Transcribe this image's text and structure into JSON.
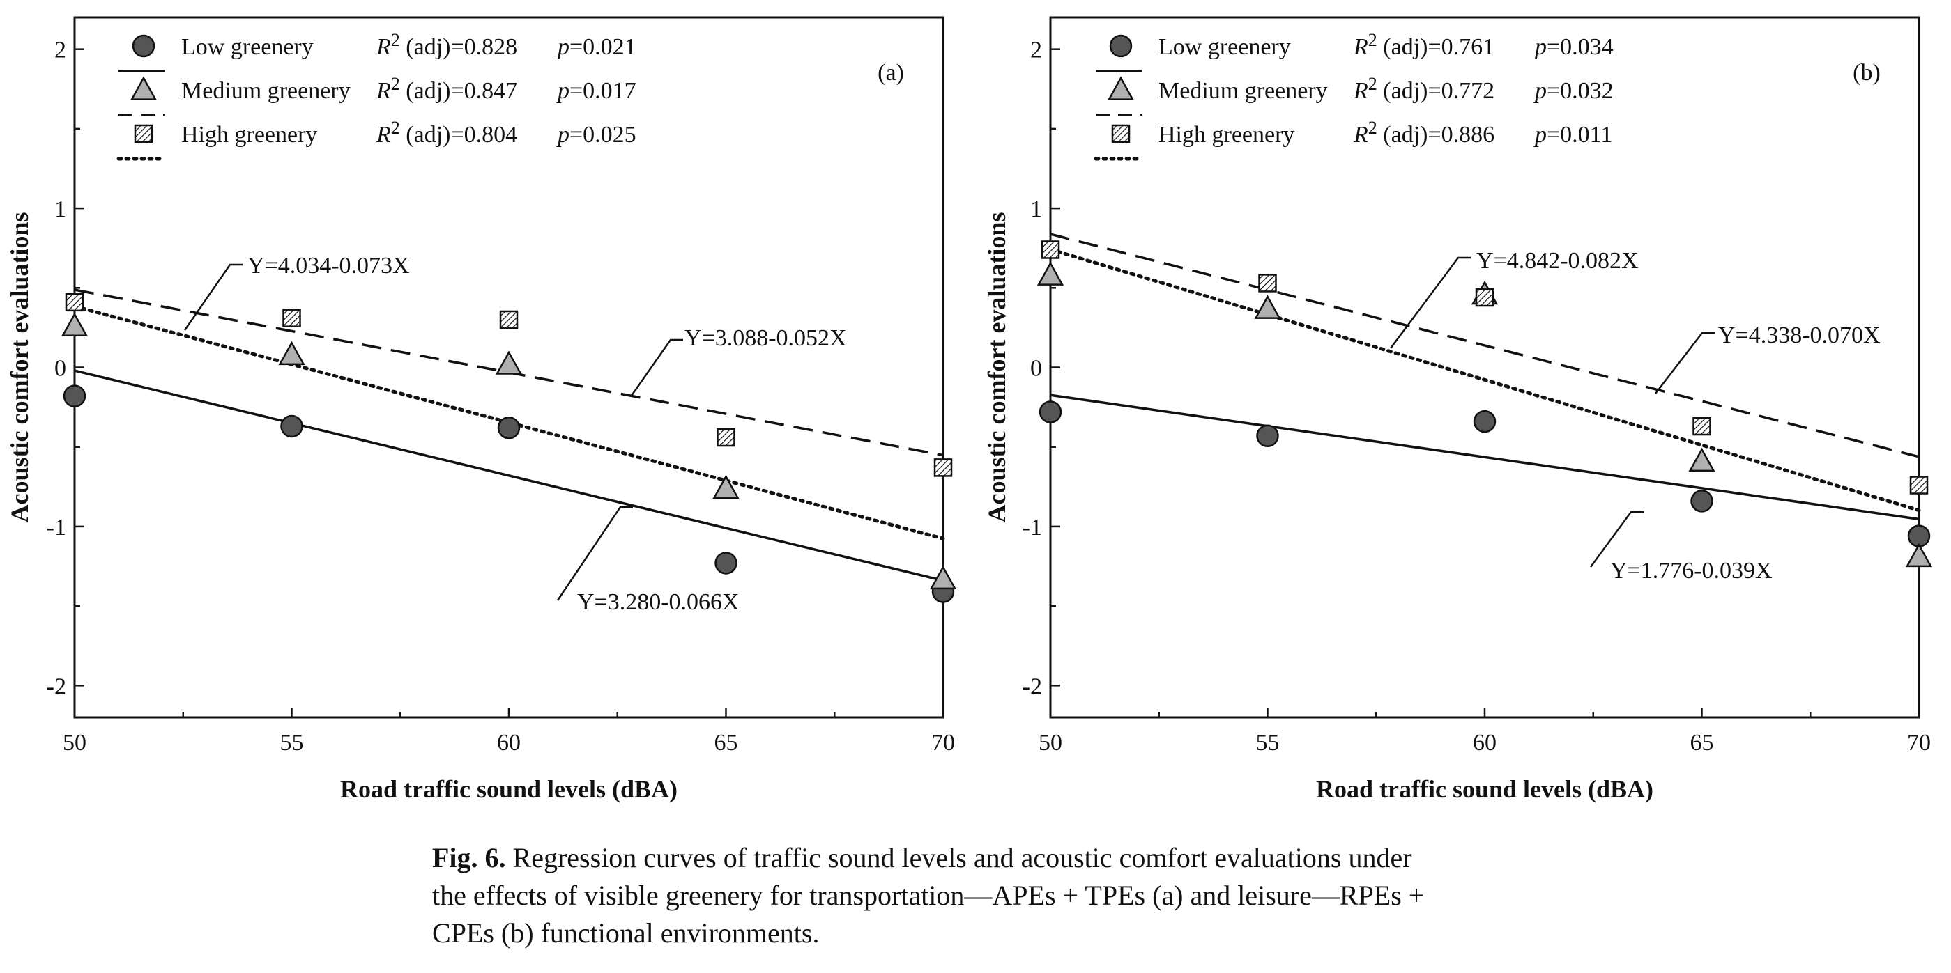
{
  "chart_data": [
    {
      "type": "scatter",
      "panel_label": "(a)",
      "xlabel": "Road traffic sound levels (dBA)",
      "ylabel": "Acoustic comfort evaluations",
      "xlim": [
        50,
        70
      ],
      "ylim": [
        -2.2,
        2.2
      ],
      "x_ticks": [
        "50",
        "55",
        "60",
        "65",
        "70"
      ],
      "y_ticks": [
        "-2",
        "-1",
        "0",
        "1",
        "2"
      ],
      "legend_position": "top-left",
      "x": [
        50,
        55,
        60,
        65,
        70
      ],
      "series": [
        {
          "name": "Low greenery",
          "marker": "circle",
          "line": "solid",
          "values": [
            -0.18,
            -0.37,
            -0.38,
            -1.23,
            -1.41
          ],
          "r2_label": "R",
          "r2_rest": " (adj)=0.828",
          "p_label": "p",
          "p_rest": "=0.021",
          "intercept": 3.28,
          "slope": -0.066,
          "equation": "Y=3.280-0.066X"
        },
        {
          "name": "Medium greenery",
          "marker": "triangle",
          "line": "dashed",
          "values": [
            0.26,
            0.08,
            0.02,
            -0.76,
            -1.33
          ],
          "r2_label": "R",
          "r2_rest": " (adj)=0.847",
          "p_label": "p",
          "p_rest": "=0.017",
          "intercept": 3.088,
          "slope": -0.052,
          "equation": "Y=3.088-0.052X"
        },
        {
          "name": "High greenery",
          "marker": "hatched-square",
          "line": "dotted",
          "values": [
            0.41,
            0.31,
            0.3,
            -0.44,
            -0.63
          ],
          "r2_label": "R",
          "r2_rest": " (adj)=0.804",
          "p_label": "p",
          "p_rest": "=0.025",
          "intercept": 4.034,
          "slope": -0.073,
          "equation": "Y=4.034-0.073X"
        }
      ]
    },
    {
      "type": "scatter",
      "panel_label": "(b)",
      "xlabel": "Road traffic sound levels (dBA)",
      "ylabel": "Acoustic comfort evaluations",
      "xlim": [
        50,
        70
      ],
      "ylim": [
        -2.2,
        2.2
      ],
      "x_ticks": [
        "50",
        "55",
        "60",
        "65",
        "70"
      ],
      "y_ticks": [
        "-2",
        "-1",
        "0",
        "1",
        "2"
      ],
      "legend_position": "top-left",
      "x": [
        50,
        55,
        60,
        65,
        70
      ],
      "series": [
        {
          "name": "Low greenery",
          "marker": "circle",
          "line": "solid",
          "values": [
            -0.28,
            -0.43,
            -0.34,
            -0.84,
            -1.06
          ],
          "r2_label": "R",
          "r2_rest": " (adj)=0.761",
          "p_label": "p",
          "p_rest": "=0.034",
          "intercept": 1.776,
          "slope": -0.039,
          "equation": "Y=1.776-0.039X"
        },
        {
          "name": "Medium greenery",
          "marker": "triangle",
          "line": "dashed",
          "values": [
            0.58,
            0.37,
            0.46,
            -0.59,
            -1.19
          ],
          "r2_label": "R",
          "r2_rest": " (adj)=0.772",
          "p_label": "p",
          "p_rest": "=0.032",
          "intercept": 4.338,
          "slope": -0.07,
          "equation": "Y=4.338-0.070X"
        },
        {
          "name": "High greenery",
          "marker": "hatched-square",
          "line": "dotted",
          "values": [
            0.74,
            0.53,
            0.44,
            -0.37,
            -0.74
          ],
          "r2_label": "R",
          "r2_rest": " (adj)=0.886",
          "p_label": "p",
          "p_rest": "=0.011",
          "intercept": 4.842,
          "slope": -0.082,
          "equation": "Y=4.842-0.082X"
        }
      ]
    }
  ],
  "caption": {
    "label": "Fig. 6.",
    "text": " Regression curves of traffic sound levels and acoustic comfort evaluations under the effects of visible greenery for transportation—APEs + TPEs (a) and leisure—RPEs + CPEs (b) functional environments."
  },
  "colors": {
    "marker_fill_low": "#555555",
    "marker_fill_medium": "#b0b0b0",
    "marker_fill_high": "#dddddd",
    "stroke": "#111111"
  }
}
